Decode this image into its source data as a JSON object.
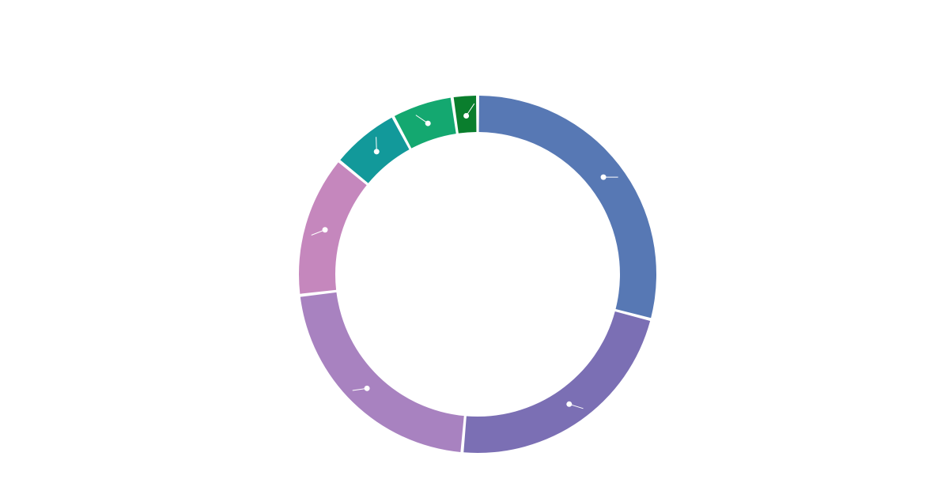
{
  "chart_data": {
    "type": "pie",
    "variant": "donut",
    "legend": "none",
    "series": [
      {
        "values": [
          29.3,
          22.5,
          21.9,
          12.9,
          6.3,
          5.6,
          2.3
        ],
        "colors": [
          "#5778b4",
          "#7b6fb4",
          "#a882c0",
          "#c587bd",
          "#12999a",
          "#14a870",
          "#0a7e2d"
        ]
      }
    ]
  }
}
